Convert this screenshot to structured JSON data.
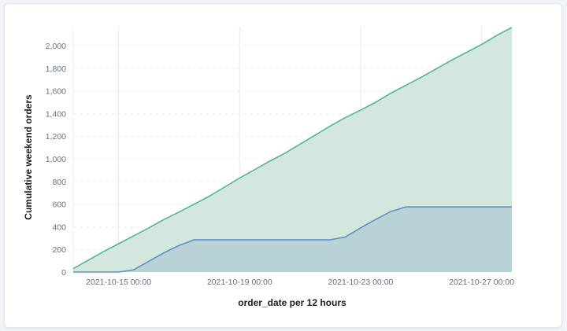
{
  "chart_data": {
    "type": "area",
    "xlabel": "order_date per 12 hours",
    "ylabel": "Cumulative weekend orders",
    "ylim": [
      0,
      2160
    ],
    "y_ticks": [
      "0",
      "200",
      "400",
      "600",
      "800",
      "1,000",
      "1,200",
      "1,400",
      "1,600",
      "1,800",
      "2,000"
    ],
    "x_ticks": [
      "2021-10-15 00:00",
      "2021-10-19 00:00",
      "2021-10-23 00:00",
      "2021-10-27 00:00"
    ],
    "x_tick_indices": [
      3,
      11,
      19,
      27
    ],
    "x": [
      "2021-10-13 12:00",
      "2021-10-14 00:00",
      "2021-10-14 12:00",
      "2021-10-15 00:00",
      "2021-10-15 12:00",
      "2021-10-16 00:00",
      "2021-10-16 12:00",
      "2021-10-17 00:00",
      "2021-10-17 12:00",
      "2021-10-18 00:00",
      "2021-10-18 12:00",
      "2021-10-19 00:00",
      "2021-10-19 12:00",
      "2021-10-20 00:00",
      "2021-10-20 12:00",
      "2021-10-21 00:00",
      "2021-10-21 12:00",
      "2021-10-22 00:00",
      "2021-10-22 12:00",
      "2021-10-23 00:00",
      "2021-10-23 12:00",
      "2021-10-24 00:00",
      "2021-10-24 12:00",
      "2021-10-25 00:00",
      "2021-10-25 12:00",
      "2021-10-26 00:00",
      "2021-10-26 12:00",
      "2021-10-27 00:00",
      "2021-10-27 12:00",
      "2021-10-28 00:00"
    ],
    "series": [
      {
        "color": "#54b399",
        "fill": "#d3e7df",
        "values": [
          30,
          105,
          180,
          250,
          320,
          390,
          465,
          530,
          600,
          670,
          750,
          830,
          905,
          980,
          1050,
          1130,
          1210,
          1290,
          1365,
          1430,
          1500,
          1580,
          1650,
          1720,
          1795,
          1870,
          1940,
          2010,
          2090,
          2160
        ]
      },
      {
        "color": "#6092c0",
        "fill": "#b4ced6",
        "values": [
          0,
          0,
          0,
          0,
          20,
          95,
          170,
          235,
          285,
          285,
          285,
          285,
          285,
          285,
          285,
          285,
          285,
          285,
          310,
          390,
          465,
          535,
          575,
          575,
          575,
          575,
          575,
          575,
          575,
          575
        ]
      }
    ],
    "grid": {
      "horizontal": "dashed",
      "vertical": true
    },
    "legend": "none"
  }
}
